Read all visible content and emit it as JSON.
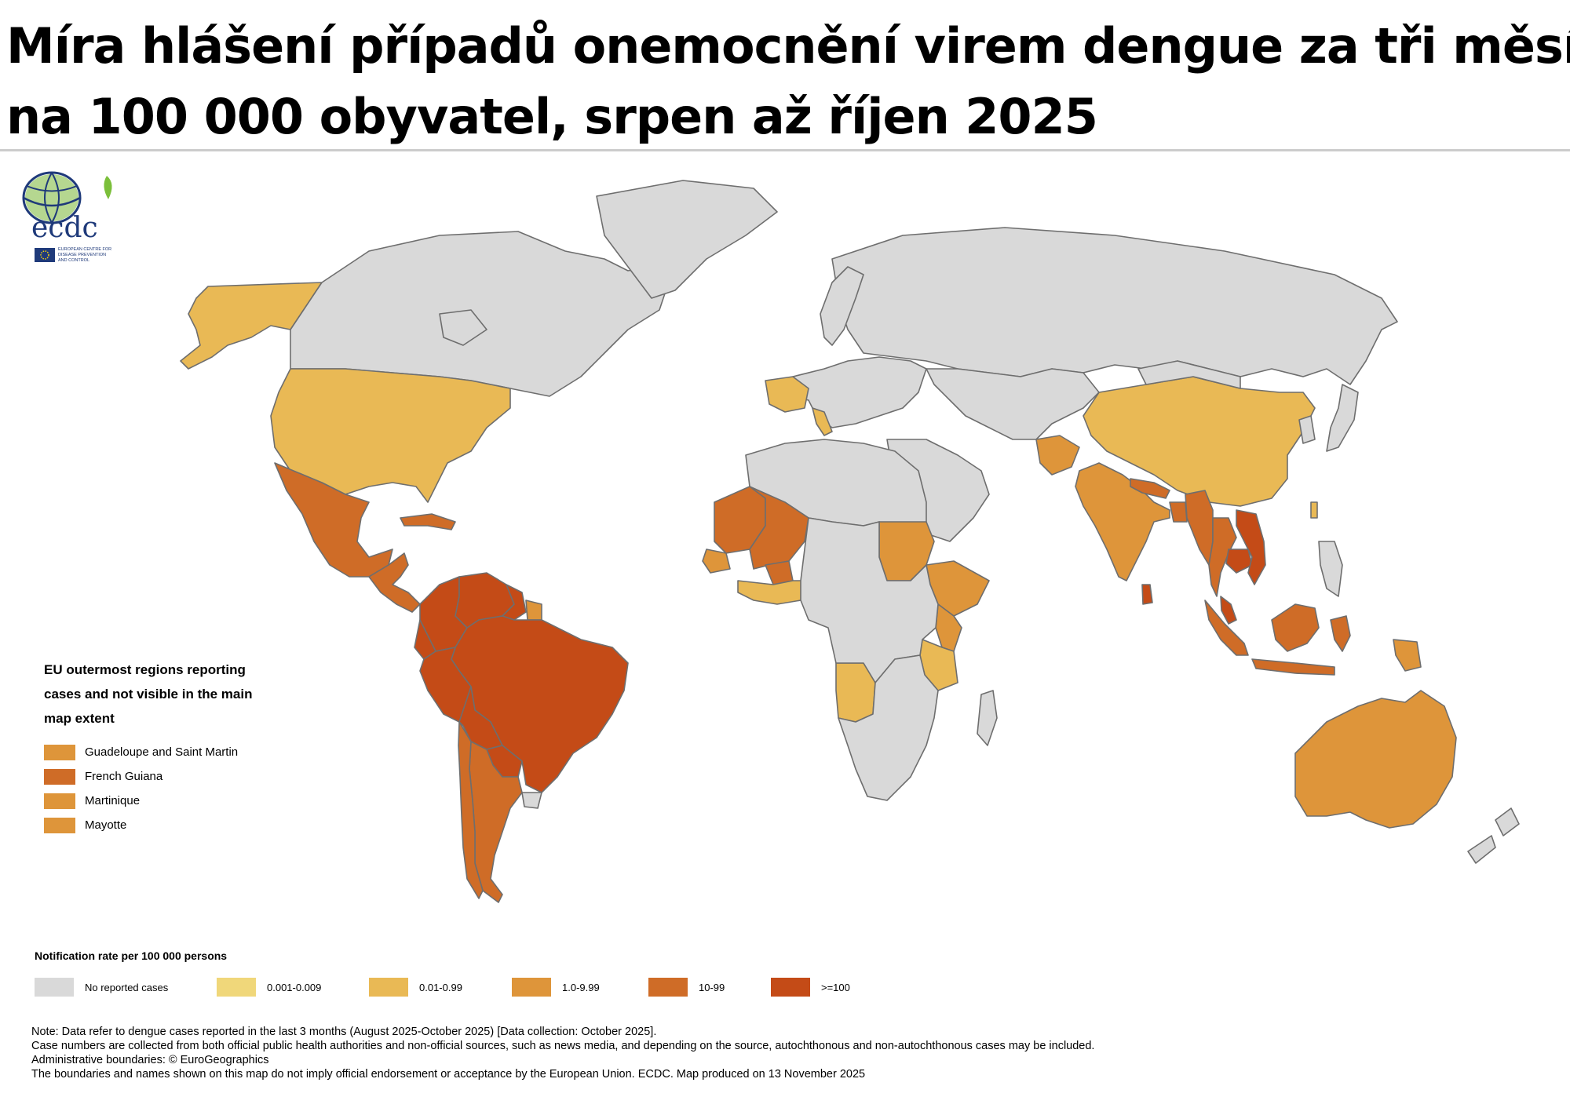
{
  "title": {
    "line1": "Míra hlášení případů onemocnění virem dengue za tři měsíce",
    "line2": "na 100 000 obyvatel, srpen až říjen 2025"
  },
  "logo": {
    "acronym": "ecdc",
    "subtitle_lines": [
      "EUROPEAN CENTRE FOR",
      "DISEASE PREVENTION",
      "AND CONTROL"
    ]
  },
  "colors": {
    "none": "#d9d9d9",
    "c1": "#f0d77a",
    "c2": "#e9b955",
    "c3": "#de953a",
    "c4": "#cf6c27",
    "c5": "#c44b17",
    "border": "#6e6e6e",
    "ocean": "#ffffff"
  },
  "eu_outermost": {
    "title_lines": [
      "EU outermost regions reporting",
      "cases and not visible in the main",
      "map extent"
    ],
    "items": [
      {
        "label": "Guadeloupe and Saint Martin",
        "category": "c3"
      },
      {
        "label": "French Guiana",
        "category": "c4"
      },
      {
        "label": "Martinique",
        "category": "c3"
      },
      {
        "label": "Mayotte",
        "category": "c3"
      }
    ]
  },
  "legend": {
    "title": "Notification rate per 100 000 persons",
    "items": [
      {
        "label": "No reported cases",
        "category": "none"
      },
      {
        "label": "0.001-0.009",
        "category": "c1"
      },
      {
        "label": "0.01-0.99",
        "category": "c2"
      },
      {
        "label": "1.0-9.99",
        "category": "c3"
      },
      {
        "label": "10-99",
        "category": "c4"
      },
      {
        "label": ">=100",
        "category": "c5"
      }
    ]
  },
  "notes": [
    "Note: Data refer to dengue cases reported in the last 3 months (August 2025-October 2025) [Data collection: October 2025].",
    "Case numbers are collected from both official public health authorities and non-official sources, such as news media, and depending on the source, autochthonous and non-autochthonous cases may be included.",
    "Administrative boundaries: © EuroGeographics",
    "The boundaries and names shown on this map do not imply official endorsement or acceptance by the European Union. ECDC. Map produced on 13 November 2025"
  ],
  "regions": [
    {
      "name": "Alaska",
      "category": "c2"
    },
    {
      "name": "Canada",
      "category": "none"
    },
    {
      "name": "Greenland",
      "category": "none"
    },
    {
      "name": "United States",
      "category": "c2"
    },
    {
      "name": "Mexico",
      "category": "c4"
    },
    {
      "name": "Central America",
      "category": "c4"
    },
    {
      "name": "Cuba",
      "category": "c4"
    },
    {
      "name": "Colombia",
      "category": "c5"
    },
    {
      "name": "Venezuela",
      "category": "c5"
    },
    {
      "name": "Guyana",
      "category": "c5"
    },
    {
      "name": "Suriname",
      "category": "c3"
    },
    {
      "name": "Brazil",
      "category": "c5"
    },
    {
      "name": "Ecuador",
      "category": "c5"
    },
    {
      "name": "Peru",
      "category": "c5"
    },
    {
      "name": "Bolivia",
      "category": "c5"
    },
    {
      "name": "Paraguay",
      "category": "c5"
    },
    {
      "name": "Argentina",
      "category": "c4"
    },
    {
      "name": "Chile",
      "category": "c4"
    },
    {
      "name": "Uruguay",
      "category": "none"
    },
    {
      "name": "Russia",
      "category": "none"
    },
    {
      "name": "Scandinavia",
      "category": "none"
    },
    {
      "name": "Europe",
      "category": "none"
    },
    {
      "name": "France",
      "category": "c2"
    },
    {
      "name": "Italy",
      "category": "c2"
    },
    {
      "name": "Middle East",
      "category": "none"
    },
    {
      "name": "Central Asia",
      "category": "none"
    },
    {
      "name": "Afghanistan",
      "category": "c3"
    },
    {
      "name": "China",
      "category": "c2"
    },
    {
      "name": "Mongolia",
      "category": "none"
    },
    {
      "name": "India",
      "category": "c3"
    },
    {
      "name": "Nepal",
      "category": "c4"
    },
    {
      "name": "Bangladesh",
      "category": "c4"
    },
    {
      "name": "Myanmar",
      "category": "c4"
    },
    {
      "name": "Thailand",
      "category": "c4"
    },
    {
      "name": "Cambodia",
      "category": "c5"
    },
    {
      "name": "Vietnam",
      "category": "c5"
    },
    {
      "name": "Sri Lanka",
      "category": "c5"
    },
    {
      "name": "Malaysia",
      "category": "c5"
    },
    {
      "name": "Borneo",
      "category": "c4"
    },
    {
      "name": "Sumatra",
      "category": "c4"
    },
    {
      "name": "Java",
      "category": "c4"
    },
    {
      "name": "Sulawesi",
      "category": "c4"
    },
    {
      "name": "Philippines",
      "category": "none"
    },
    {
      "name": "Korea",
      "category": "none"
    },
    {
      "name": "Japan",
      "category": "none"
    },
    {
      "name": "Taiwan",
      "category": "c2"
    },
    {
      "name": "Papua New Guinea",
      "category": "c3"
    },
    {
      "name": "Australia",
      "category": "c3"
    },
    {
      "name": "New Zealand",
      "category": "none"
    },
    {
      "name": "North Africa",
      "category": "none"
    },
    {
      "name": "Mauritania",
      "category": "c4"
    },
    {
      "name": "Mali",
      "category": "c4"
    },
    {
      "name": "Senegal",
      "category": "c3"
    },
    {
      "name": "Burkina Faso",
      "category": "c4"
    },
    {
      "name": "West Africa Coast",
      "category": "c2"
    },
    {
      "name": "Sudan",
      "category": "c3"
    },
    {
      "name": "Ethiopia",
      "category": "c3"
    },
    {
      "name": "Kenya",
      "category": "c3"
    },
    {
      "name": "Tanzania",
      "category": "c2"
    },
    {
      "name": "Angola",
      "category": "c2"
    },
    {
      "name": "Central Africa",
      "category": "none"
    },
    {
      "name": "Southern Africa",
      "category": "none"
    },
    {
      "name": "Madagascar",
      "category": "none"
    }
  ]
}
